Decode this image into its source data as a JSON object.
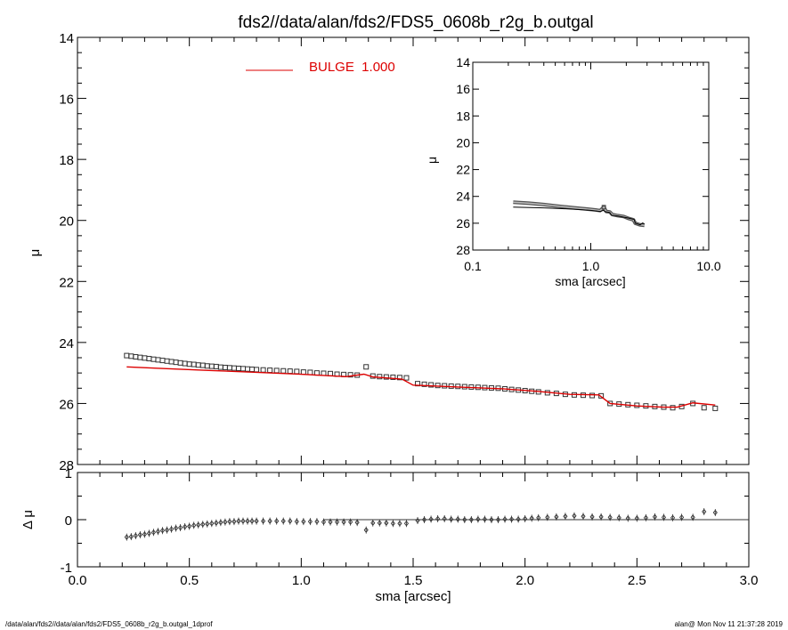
{
  "title": "fds2//data/alan/fds2/FDS5_0608b_r2g_b.outgal",
  "footer": {
    "left": "/data/alan/fds2//data/alan/fds2/FDS5_0608b_r2g_b.outgal_1dprof",
    "right": "alan@  Mon Nov 11 21:37:28 2019"
  },
  "colors": {
    "model": "#dd0000",
    "axis": "#000000",
    "data": "#333333"
  },
  "chart_data": [
    {
      "type": "scatter",
      "panel": "main profile",
      "xlabel": "",
      "ylabel": "μ",
      "xlim": [
        0.0,
        3.0
      ],
      "ylim": [
        28,
        14
      ],
      "y_inverted": true,
      "yticks": [
        "14",
        "16",
        "18",
        "20",
        "22",
        "24",
        "26",
        "28"
      ],
      "legend": {
        "label": "BULGE  1.000",
        "placement": "top-center",
        "color": "#dd0000"
      },
      "series": [
        {
          "name": "",
          "style": "open-square markers",
          "x": [
            0.22,
            0.24,
            0.26,
            0.28,
            0.3,
            0.32,
            0.34,
            0.36,
            0.38,
            0.4,
            0.42,
            0.44,
            0.46,
            0.48,
            0.5,
            0.52,
            0.54,
            0.56,
            0.58,
            0.6,
            0.62,
            0.64,
            0.66,
            0.68,
            0.7,
            0.72,
            0.74,
            0.76,
            0.78,
            0.8,
            0.83,
            0.86,
            0.89,
            0.92,
            0.95,
            0.98,
            1.01,
            1.04,
            1.07,
            1.1,
            1.13,
            1.16,
            1.19,
            1.22,
            1.25,
            1.29,
            1.32,
            1.35,
            1.38,
            1.41,
            1.44,
            1.47,
            1.52,
            1.55,
            1.58,
            1.61,
            1.64,
            1.67,
            1.7,
            1.73,
            1.76,
            1.79,
            1.82,
            1.85,
            1.88,
            1.91,
            1.94,
            1.97,
            2.0,
            2.03,
            2.06,
            2.1,
            2.14,
            2.18,
            2.22,
            2.26,
            2.3,
            2.34,
            2.38,
            2.42,
            2.46,
            2.5,
            2.54,
            2.58,
            2.62,
            2.66,
            2.7,
            2.75,
            2.8,
            2.85
          ],
          "y": [
            24.43,
            24.45,
            24.47,
            24.49,
            24.51,
            24.53,
            24.55,
            24.57,
            24.59,
            24.61,
            24.63,
            24.65,
            24.67,
            24.69,
            24.71,
            24.72,
            24.74,
            24.75,
            24.77,
            24.78,
            24.79,
            24.81,
            24.82,
            24.83,
            24.84,
            24.85,
            24.86,
            24.87,
            24.88,
            24.89,
            24.9,
            24.91,
            24.92,
            24.93,
            24.94,
            24.95,
            24.97,
            24.98,
            25.0,
            25.01,
            25.02,
            25.04,
            25.05,
            25.06,
            25.07,
            24.8,
            25.1,
            25.12,
            25.13,
            25.14,
            25.15,
            25.16,
            25.35,
            25.37,
            25.39,
            25.41,
            25.42,
            25.43,
            25.44,
            25.45,
            25.46,
            25.47,
            25.48,
            25.49,
            25.5,
            25.52,
            25.54,
            25.56,
            25.58,
            25.6,
            25.62,
            25.65,
            25.67,
            25.7,
            25.72,
            25.73,
            25.74,
            25.75,
            26.0,
            26.02,
            26.04,
            26.06,
            26.08,
            26.1,
            26.12,
            26.14,
            26.1,
            26.0,
            26.14,
            26.16
          ]
        },
        {
          "name": "BULGE  1.000",
          "style": "line",
          "color": "#dd0000",
          "x": [
            0.22,
            0.4,
            0.6,
            0.8,
            1.0,
            1.2,
            1.28,
            1.32,
            1.45,
            1.5,
            1.7,
            1.9,
            2.05,
            2.2,
            2.33,
            2.38,
            2.5,
            2.62,
            2.68,
            2.75,
            2.85
          ],
          "y": [
            24.8,
            24.86,
            24.92,
            24.98,
            25.04,
            25.12,
            25.04,
            25.13,
            25.2,
            25.4,
            25.46,
            25.52,
            25.6,
            25.7,
            25.72,
            26.0,
            26.08,
            26.12,
            26.12,
            25.98,
            26.05
          ]
        }
      ]
    },
    {
      "type": "scatter",
      "panel": "residuals",
      "xlabel": "sma [arcsec]",
      "ylabel": "Δ μ",
      "xlim": [
        0.0,
        3.0
      ],
      "ylim": [
        -1,
        1
      ],
      "xticks": [
        "0.0",
        "0.5",
        "1.0",
        "1.5",
        "2.0",
        "2.5",
        "3.0"
      ],
      "yticks": [
        "1",
        "0",
        "-1"
      ],
      "zero_line": {
        "x": [
          1.1,
          3.0
        ],
        "y": 0
      },
      "series": [
        {
          "name": "",
          "style": "open-diamond markers with error bars",
          "x": [
            0.22,
            0.24,
            0.26,
            0.28,
            0.3,
            0.32,
            0.34,
            0.36,
            0.38,
            0.4,
            0.42,
            0.44,
            0.46,
            0.48,
            0.5,
            0.52,
            0.54,
            0.56,
            0.58,
            0.6,
            0.62,
            0.64,
            0.66,
            0.68,
            0.7,
            0.72,
            0.74,
            0.76,
            0.78,
            0.8,
            0.83,
            0.86,
            0.89,
            0.92,
            0.95,
            0.98,
            1.01,
            1.04,
            1.07,
            1.1,
            1.13,
            1.16,
            1.19,
            1.22,
            1.25,
            1.29,
            1.32,
            1.35,
            1.38,
            1.41,
            1.44,
            1.47,
            1.52,
            1.55,
            1.58,
            1.61,
            1.64,
            1.67,
            1.7,
            1.73,
            1.76,
            1.79,
            1.82,
            1.85,
            1.88,
            1.91,
            1.94,
            1.97,
            2.0,
            2.03,
            2.06,
            2.1,
            2.14,
            2.18,
            2.22,
            2.26,
            2.3,
            2.34,
            2.38,
            2.42,
            2.46,
            2.5,
            2.54,
            2.58,
            2.62,
            2.66,
            2.7,
            2.75,
            2.8,
            2.85
          ],
          "y": [
            -0.37,
            -0.36,
            -0.34,
            -0.32,
            -0.31,
            -0.29,
            -0.27,
            -0.25,
            -0.23,
            -0.22,
            -0.2,
            -0.18,
            -0.17,
            -0.15,
            -0.14,
            -0.12,
            -0.11,
            -0.1,
            -0.09,
            -0.08,
            -0.07,
            -0.06,
            -0.05,
            -0.04,
            -0.04,
            -0.03,
            -0.03,
            -0.03,
            -0.03,
            -0.03,
            -0.03,
            -0.03,
            -0.03,
            -0.03,
            -0.03,
            -0.04,
            -0.04,
            -0.04,
            -0.04,
            -0.05,
            -0.05,
            -0.05,
            -0.05,
            -0.05,
            -0.06,
            -0.22,
            -0.07,
            -0.07,
            -0.07,
            -0.08,
            -0.08,
            -0.08,
            -0.02,
            0.0,
            0.01,
            0.02,
            0.02,
            0.01,
            0.01,
            0.0,
            0.0,
            0.01,
            0.01,
            0.0,
            0.0,
            0.01,
            0.01,
            0.01,
            0.02,
            0.03,
            0.04,
            0.05,
            0.06,
            0.07,
            0.08,
            0.07,
            0.06,
            0.06,
            0.05,
            0.04,
            0.03,
            0.03,
            0.04,
            0.06,
            0.05,
            0.04,
            0.05,
            0.05,
            0.17,
            0.15
          ]
        }
      ]
    },
    {
      "type": "line",
      "panel": "inset",
      "xlabel": "sma [arcsec]",
      "ylabel": "μ",
      "x_scale": "log",
      "xlim": [
        0.1,
        10.0
      ],
      "ylim": [
        28,
        14
      ],
      "y_inverted": true,
      "xticks": [
        "0.1",
        "1.0",
        "10.0"
      ],
      "yticks": [
        "14",
        "16",
        "18",
        "20",
        "22",
        "24",
        "26",
        "28"
      ],
      "series": [
        {
          "name": "",
          "style": "data",
          "x": [
            0.22,
            0.3,
            0.4,
            0.5,
            0.6,
            0.7,
            0.8,
            0.9,
            1.0,
            1.1,
            1.2,
            1.29,
            1.35,
            1.45,
            1.52,
            1.7,
            1.9,
            2.1,
            2.3,
            2.38,
            2.6,
            2.85
          ],
          "y": [
            24.43,
            24.51,
            24.61,
            24.71,
            24.78,
            24.84,
            24.89,
            24.93,
            24.97,
            25.01,
            25.06,
            24.8,
            25.12,
            25.16,
            25.35,
            25.44,
            25.5,
            25.65,
            25.75,
            26.0,
            26.12,
            26.16
          ]
        },
        {
          "name": "",
          "style": "model",
          "x": [
            0.22,
            0.4,
            0.6,
            0.8,
            1.0,
            1.2,
            1.28,
            1.32,
            1.45,
            1.5,
            1.7,
            2.05,
            2.33,
            2.38,
            2.62,
            2.75,
            2.85
          ],
          "y": [
            24.8,
            24.86,
            24.92,
            24.98,
            25.04,
            25.12,
            25.04,
            25.13,
            25.2,
            25.4,
            25.46,
            25.6,
            25.72,
            26.0,
            26.12,
            25.98,
            26.05
          ]
        }
      ]
    }
  ]
}
